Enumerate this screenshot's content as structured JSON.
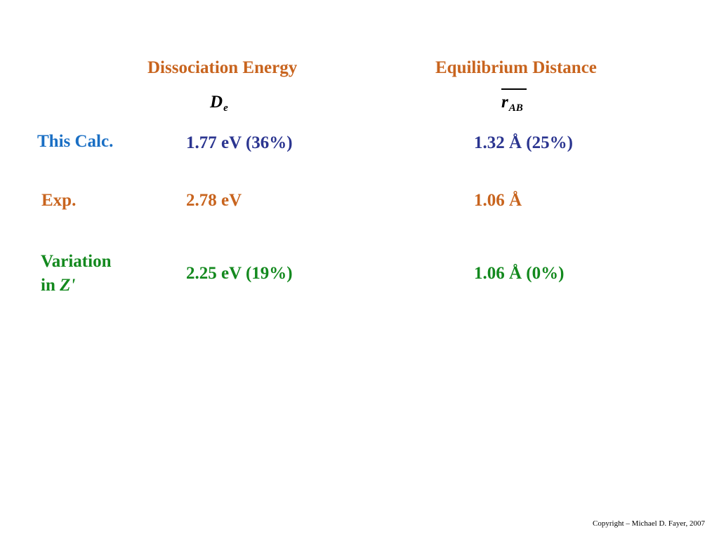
{
  "headers": {
    "dissociation_energy": "Dissociation Energy",
    "equilibrium_distance": "Equilibrium Distance"
  },
  "symbols": {
    "de_main": "D",
    "de_sub": "e",
    "rab_main": "r",
    "rab_sub": "AB"
  },
  "rows": [
    {
      "label": "This Calc.",
      "energy": "1.77 eV  (36%)",
      "distance": "1.32 Å  (25%)",
      "color": "#2B3590",
      "label_color": "#1A6FC4"
    },
    {
      "label": "Exp.",
      "energy": "2.78 eV",
      "distance": "1.06 Å",
      "color": "#C8641E",
      "label_color": "#C8641E"
    },
    {
      "label_line1": "Variation",
      "label_line2_prefix": "in ",
      "label_line2_var": "Z'",
      "energy": "2.25 eV  (19%)",
      "distance": "1.06 Å  (0%)",
      "color": "#13891E",
      "label_color": "#13891E"
    }
  ],
  "copyright": "Copyright – Michael D. Fayer, 2007"
}
